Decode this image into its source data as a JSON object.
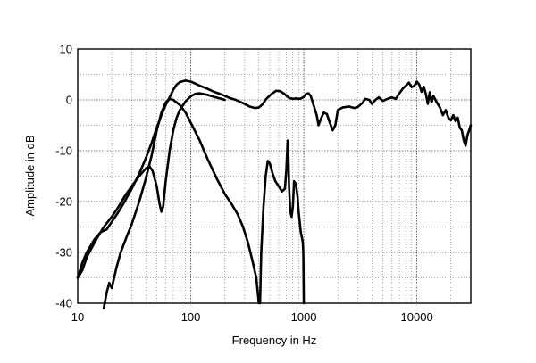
{
  "chart_data": {
    "type": "line",
    "xlabel": "Frequency in Hz",
    "ylabel": "Amplitude in dB",
    "xscale": "log",
    "xlim": [
      10,
      30000
    ],
    "ylim": [
      -40,
      10
    ],
    "x_ticks": [
      10,
      100,
      1000,
      10000
    ],
    "x_tick_labels": [
      "10",
      "100",
      "1000",
      "10000"
    ],
    "y_ticks": [
      10,
      0,
      -10,
      -20,
      -30,
      -40
    ],
    "y_tick_labels": [
      "10",
      "0",
      "-10",
      "-20",
      "-30",
      "-40"
    ],
    "grid": true,
    "series": [
      {
        "points": [
          [
            10,
            -35
          ],
          [
            11,
            -32
          ],
          [
            12,
            -30
          ],
          [
            14,
            -27.5
          ],
          [
            16,
            -26
          ],
          [
            18,
            -25.5
          ],
          [
            20,
            -24
          ],
          [
            23,
            -22
          ],
          [
            26,
            -20
          ],
          [
            30,
            -17.5
          ],
          [
            35,
            -14.5
          ],
          [
            40,
            -11.5
          ],
          [
            45,
            -8.5
          ],
          [
            50,
            -5.5
          ],
          [
            55,
            -3
          ],
          [
            60,
            -1
          ],
          [
            65,
            0.5
          ],
          [
            70,
            2
          ],
          [
            75,
            3
          ],
          [
            80,
            3.5
          ],
          [
            90,
            3.8
          ],
          [
            100,
            3.6
          ],
          [
            110,
            3.2
          ],
          [
            120,
            2.8
          ],
          [
            140,
            2.2
          ],
          [
            160,
            1.6
          ],
          [
            180,
            1.2
          ],
          [
            200,
            0.8
          ],
          [
            220,
            0.4
          ],
          [
            250,
            0
          ],
          [
            280,
            -0.5
          ],
          [
            300,
            -0.8
          ],
          [
            330,
            -1.3
          ],
          [
            370,
            -1.6
          ],
          [
            400,
            -1.5
          ],
          [
            430,
            -0.9
          ],
          [
            470,
            0.3
          ],
          [
            520,
            1.2
          ],
          [
            570,
            1.8
          ],
          [
            620,
            1.7
          ],
          [
            680,
            1.1
          ],
          [
            740,
            0.4
          ],
          [
            800,
            0.2
          ],
          [
            850,
            0.3
          ],
          [
            900,
            0.2
          ],
          [
            950,
            0.3
          ],
          [
            1000,
            0.6
          ],
          [
            1050,
            1.2
          ],
          [
            1100,
            1.3
          ],
          [
            1150,
            0.8
          ],
          [
            1200,
            -0.5
          ],
          [
            1300,
            -3
          ],
          [
            1350,
            -5
          ],
          [
            1400,
            -4
          ],
          [
            1500,
            -2.5
          ],
          [
            1600,
            -2.8
          ],
          [
            1700,
            -4.5
          ],
          [
            1800,
            -6
          ],
          [
            1900,
            -5
          ],
          [
            2000,
            -2
          ],
          [
            2200,
            -1.5
          ],
          [
            2500,
            -1.3
          ],
          [
            2800,
            -1.6
          ],
          [
            3000,
            -1.4
          ],
          [
            3300,
            -0.6
          ],
          [
            3500,
            0.2
          ],
          [
            3800,
            0
          ],
          [
            4000,
            -0.8
          ],
          [
            4300,
            0
          ],
          [
            4600,
            0.5
          ],
          [
            5000,
            -0.2
          ],
          [
            5500,
            0.2
          ],
          [
            6000,
            0.5
          ],
          [
            6500,
            0.2
          ],
          [
            7000,
            1.3
          ],
          [
            7500,
            2.2
          ],
          [
            8000,
            2.8
          ],
          [
            8500,
            3.4
          ],
          [
            9000,
            2.5
          ],
          [
            9500,
            2.8
          ],
          [
            10000,
            3.6
          ],
          [
            10500,
            3
          ],
          [
            11000,
            1.6
          ],
          [
            11500,
            2.6
          ],
          [
            12000,
            1.2
          ],
          [
            12500,
            -0.8
          ],
          [
            13000,
            1.5
          ],
          [
            13500,
            -0.5
          ],
          [
            14000,
            0.8
          ],
          [
            15000,
            -0.5
          ],
          [
            16000,
            -1.5
          ],
          [
            17000,
            -3
          ],
          [
            18000,
            -2
          ],
          [
            19000,
            -3.5
          ],
          [
            20000,
            -4
          ],
          [
            21000,
            -3
          ],
          [
            22000,
            -4.2
          ],
          [
            23000,
            -3.5
          ],
          [
            24000,
            -5.5
          ],
          [
            25000,
            -6
          ],
          [
            26000,
            -8
          ],
          [
            27000,
            -9
          ],
          [
            28000,
            -7
          ],
          [
            30000,
            -5
          ]
        ]
      },
      {
        "points": [
          [
            10,
            -35
          ],
          [
            11,
            -33.5
          ],
          [
            12,
            -31
          ],
          [
            13,
            -29.5
          ],
          [
            15,
            -27
          ],
          [
            17,
            -25
          ],
          [
            20,
            -23
          ],
          [
            23,
            -21
          ],
          [
            26,
            -19
          ],
          [
            30,
            -17
          ],
          [
            35,
            -15
          ],
          [
            40,
            -13.5
          ],
          [
            43,
            -13
          ],
          [
            46,
            -14
          ],
          [
            50,
            -17
          ],
          [
            53,
            -20.5
          ],
          [
            55,
            -22
          ],
          [
            57,
            -21
          ],
          [
            60,
            -16
          ],
          [
            65,
            -10
          ],
          [
            70,
            -6
          ],
          [
            75,
            -3.5
          ],
          [
            80,
            -2
          ],
          [
            90,
            -0.3
          ],
          [
            100,
            0.7
          ],
          [
            110,
            1.2
          ],
          [
            120,
            1.3
          ],
          [
            140,
            1
          ],
          [
            160,
            0.6
          ],
          [
            180,
            0.3
          ],
          [
            200,
            0
          ]
        ]
      },
      {
        "points": [
          [
            17,
            -41
          ],
          [
            18,
            -38
          ],
          [
            19,
            -36
          ],
          [
            20,
            -37
          ],
          [
            21,
            -35
          ],
          [
            22,
            -33
          ],
          [
            24,
            -30
          ],
          [
            27,
            -27
          ],
          [
            30,
            -24.5
          ],
          [
            35,
            -20
          ],
          [
            40,
            -15.5
          ],
          [
            45,
            -11
          ],
          [
            50,
            -6
          ],
          [
            55,
            -2.5
          ],
          [
            60,
            -0.5
          ],
          [
            65,
            0.2
          ],
          [
            70,
            0
          ],
          [
            80,
            -1
          ],
          [
            90,
            -2.5
          ],
          [
            100,
            -4.5
          ],
          [
            120,
            -8
          ],
          [
            140,
            -11.5
          ],
          [
            170,
            -15.5
          ],
          [
            200,
            -18.5
          ],
          [
            230,
            -20.5
          ],
          [
            260,
            -22.5
          ],
          [
            290,
            -25
          ],
          [
            320,
            -28
          ],
          [
            350,
            -31.5
          ],
          [
            380,
            -35
          ],
          [
            400,
            -40
          ]
        ]
      },
      {
        "points": [
          [
            410,
            -40
          ],
          [
            420,
            -30
          ],
          [
            440,
            -21
          ],
          [
            460,
            -15
          ],
          [
            480,
            -12
          ],
          [
            500,
            -12.5
          ],
          [
            530,
            -14.5
          ],
          [
            560,
            -16
          ],
          [
            600,
            -17
          ],
          [
            640,
            -18
          ],
          [
            680,
            -17.5
          ],
          [
            700,
            -14
          ],
          [
            720,
            -8
          ],
          [
            730,
            -11
          ],
          [
            740,
            -17
          ],
          [
            760,
            -22
          ],
          [
            780,
            -23
          ],
          [
            800,
            -21
          ],
          [
            820,
            -16
          ],
          [
            850,
            -16.5
          ],
          [
            880,
            -19
          ],
          [
            900,
            -22
          ],
          [
            920,
            -24
          ],
          [
            940,
            -26
          ],
          [
            960,
            -27
          ],
          [
            980,
            -28
          ],
          [
            990,
            -30
          ],
          [
            1000,
            -40
          ]
        ]
      }
    ]
  }
}
